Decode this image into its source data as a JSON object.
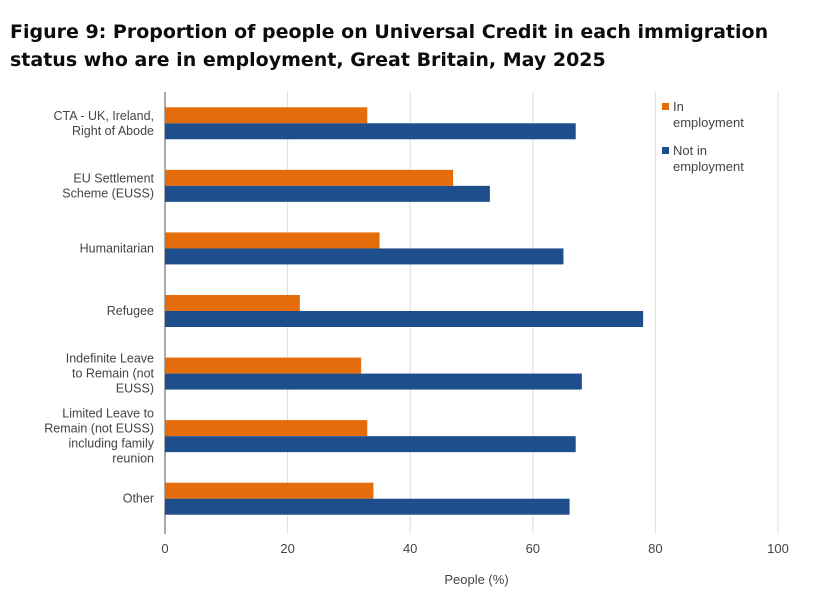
{
  "title": "Figure 9: Proportion of people on Universal Credit in each immigration status who are in employment, Great Britain, May 2025",
  "chart_data": {
    "type": "bar",
    "orientation": "horizontal",
    "title": "Figure 9: Proportion of people on Universal Credit in each immigration status who are in employment, Great Britain, May 2025",
    "xlabel": "People (%)",
    "ylabel": "",
    "xlim": [
      0,
      100
    ],
    "xticks": [
      "0",
      "20",
      "40",
      "60",
      "80",
      "100"
    ],
    "grid": "vertical",
    "legend_position": "top-right",
    "categories": [
      [
        "CTA - UK, Ireland,",
        "Right of Abode"
      ],
      [
        "EU Settlement",
        "Scheme (EUSS)"
      ],
      [
        "Humanitarian"
      ],
      [
        "Refugee"
      ],
      [
        "Indefinite Leave",
        "to Remain (not",
        "EUSS)"
      ],
      [
        "Limited Leave to",
        "Remain (not EUSS)",
        "including family",
        "reunion"
      ],
      [
        "Other"
      ]
    ],
    "series": [
      {
        "name": "In employment",
        "legend_lines": [
          "In",
          "employment"
        ],
        "color": "#e46c0a",
        "values": [
          33,
          47,
          35,
          22,
          32,
          33,
          34
        ]
      },
      {
        "name": "Not in employment",
        "legend_lines": [
          "Not in",
          "employment"
        ],
        "color": "#1f4e8c",
        "values": [
          67,
          53,
          65,
          78,
          68,
          67,
          66
        ]
      }
    ]
  }
}
